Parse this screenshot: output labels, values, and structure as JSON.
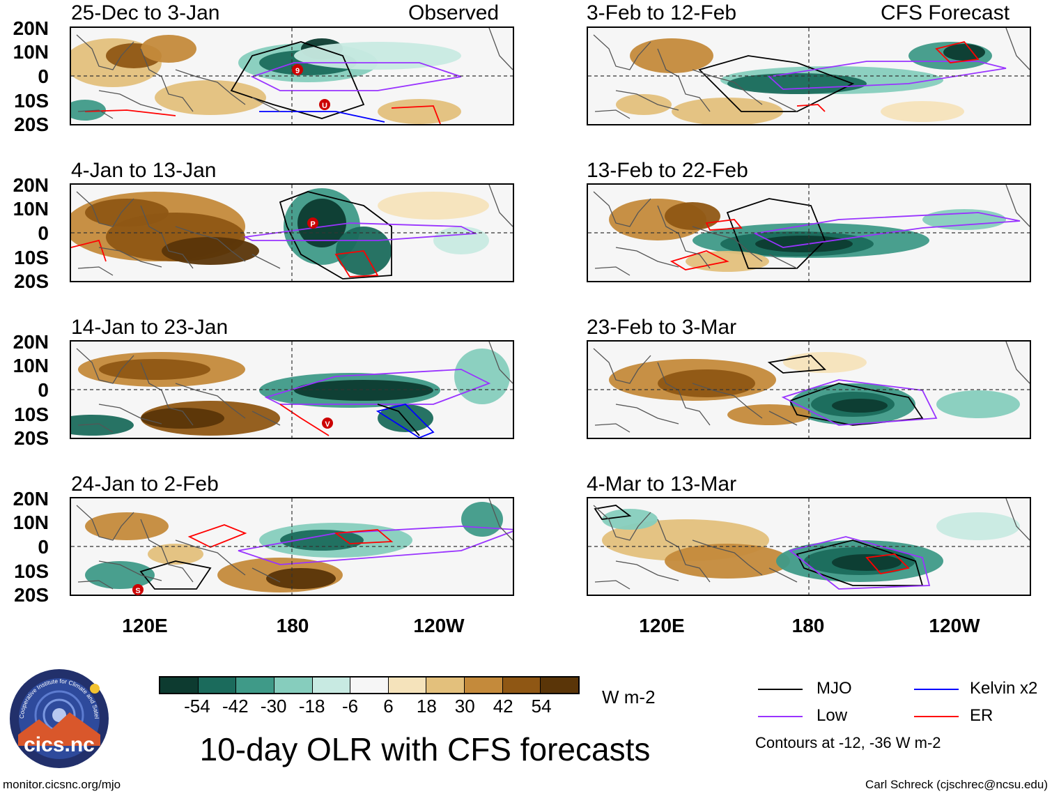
{
  "left_header": "Observed",
  "right_header": "CFS Forecast",
  "panels_left": [
    {
      "title": "25-Dec to 3-Jan"
    },
    {
      "title": "4-Jan to 13-Jan"
    },
    {
      "title": "14-Jan to 23-Jan"
    },
    {
      "title": "24-Jan to 2-Feb"
    }
  ],
  "panels_right": [
    {
      "title": "3-Feb to 12-Feb"
    },
    {
      "title": "13-Feb to 22-Feb"
    },
    {
      "title": "23-Feb to 3-Mar"
    },
    {
      "title": "4-Mar to 13-Mar"
    }
  ],
  "y_ticks": [
    "20N",
    "10N",
    "0",
    "10S",
    "20S"
  ],
  "x_ticks": [
    "120E",
    "180",
    "120W"
  ],
  "storm_labels": [
    "9",
    "U",
    "P",
    "V",
    "S"
  ],
  "colorbar": {
    "ticks": [
      "-54",
      "-42",
      "-30",
      "-18",
      "-6",
      "6",
      "18",
      "30",
      "42",
      "54"
    ],
    "units": "W m-2",
    "colors": [
      "#0d3b30",
      "#1b6b5c",
      "#3f9a88",
      "#86cdbd",
      "#c8eae2",
      "#f6f6f6",
      "#f5e3bb",
      "#e3c07c",
      "#c48a3b",
      "#8f5714",
      "#5a3508"
    ]
  },
  "legend": {
    "items": [
      {
        "label": "MJO",
        "color": "#000000"
      },
      {
        "label": "Kelvin x2",
        "color": "#0000ff"
      },
      {
        "label": "Low",
        "color": "#9933ff"
      },
      {
        "label": "ER",
        "color": "#ff0000"
      }
    ],
    "note": "Contours at -12, -36 W m-2"
  },
  "main_title": "10-day OLR with CFS forecasts",
  "logo_text": "cics.nc",
  "logo_ring_text": "Cooperative Institute for Climate and Satellites",
  "website": "monitor.cicsnc.org/mjo",
  "credit": "Carl Schreck (cjschrec@ncsu.edu)"
}
